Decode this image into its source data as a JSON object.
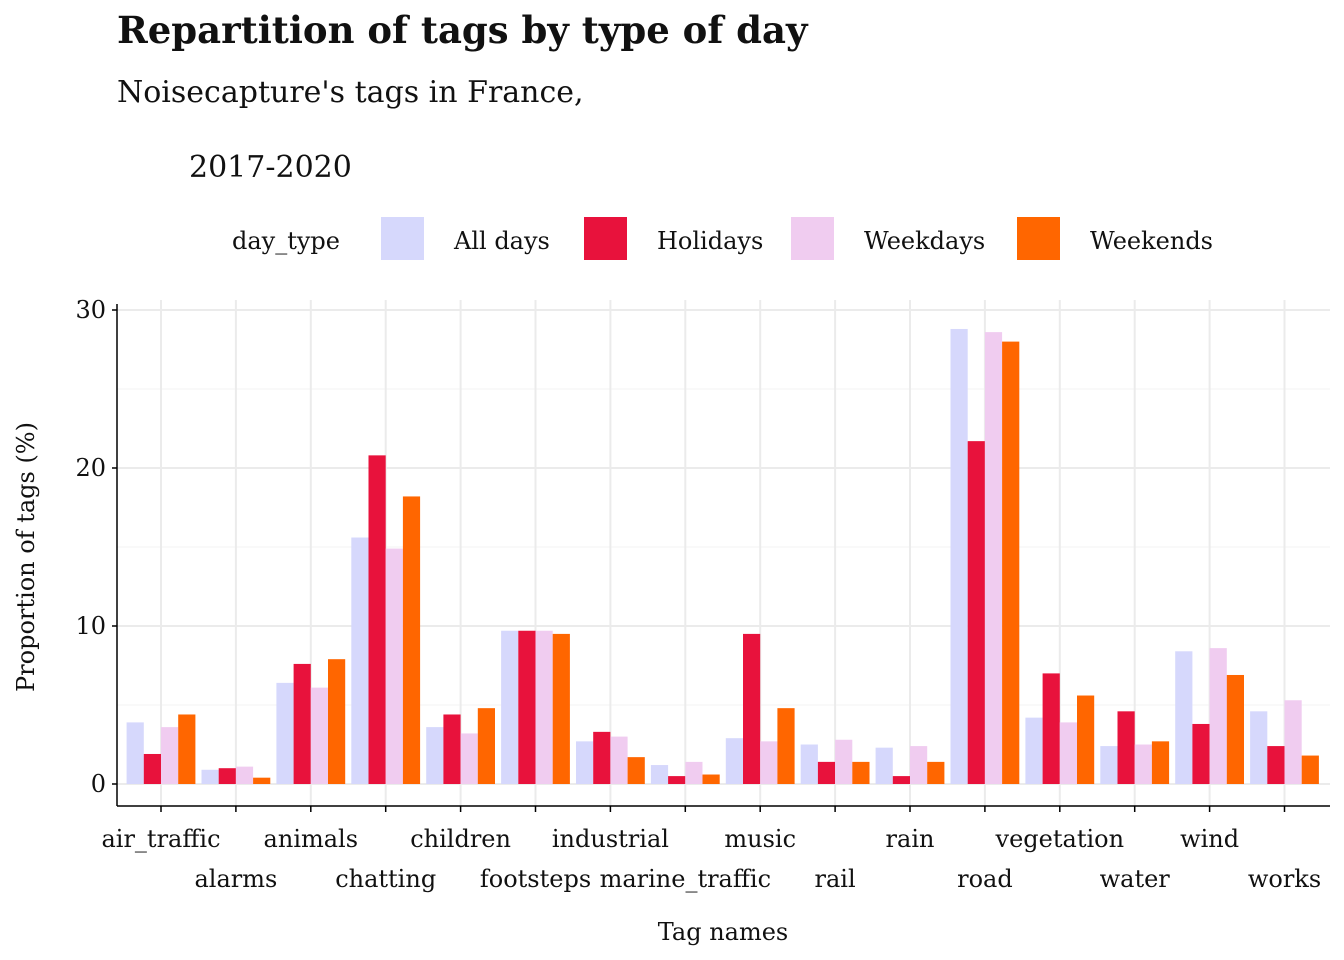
{
  "title": "Repartition of tags by type of day",
  "subtitle_line1": "Noisecapture's tags in France,",
  "subtitle_line2": "2017-2020",
  "chart_data": {
    "type": "bar",
    "xlabel": "Tag names",
    "ylabel": "Proportion of tags (%)",
    "ylim": [
      0,
      30.2
    ],
    "yticks": [
      0,
      10,
      20,
      30
    ],
    "grid": true,
    "legend": {
      "title": "day_type",
      "placement": "top"
    },
    "categories": [
      "air_traffic",
      "alarms",
      "animals",
      "chatting",
      "children",
      "footsteps",
      "industrial",
      "marine_traffic",
      "music",
      "rail",
      "rain",
      "road",
      "vegetation",
      "water",
      "wind",
      "works"
    ],
    "series": [
      {
        "name": "All days",
        "color": "#d6d8fc",
        "values": [
          3.9,
          0.9,
          6.4,
          15.6,
          3.6,
          9.7,
          2.7,
          1.2,
          2.9,
          2.5,
          2.3,
          28.8,
          4.2,
          2.4,
          8.4,
          4.6
        ]
      },
      {
        "name": "Holidays",
        "color": "#e8123c",
        "values": [
          1.9,
          1.0,
          7.6,
          20.8,
          4.4,
          9.7,
          3.3,
          0.5,
          9.5,
          1.4,
          0.5,
          21.7,
          7.0,
          4.6,
          3.8,
          2.4
        ]
      },
      {
        "name": "Weekdays",
        "color": "#f0ccf0",
        "values": [
          3.6,
          1.1,
          6.1,
          14.9,
          3.2,
          9.7,
          3.0,
          1.4,
          2.7,
          2.8,
          2.4,
          28.6,
          3.9,
          2.5,
          8.6,
          5.3
        ]
      },
      {
        "name": "Weekends",
        "color": "#ff6600",
        "values": [
          4.4,
          0.4,
          7.9,
          18.2,
          4.8,
          9.5,
          1.7,
          0.6,
          4.8,
          1.4,
          1.4,
          28.0,
          5.6,
          2.7,
          6.9,
          1.8
        ]
      }
    ]
  }
}
